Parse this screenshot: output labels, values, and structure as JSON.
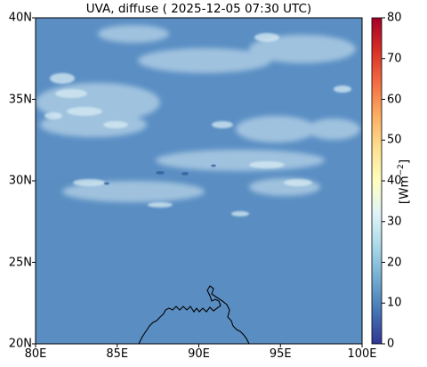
{
  "title": "UVA, diffuse ( 2025-12-05 07:30 UTC)",
  "map": {
    "lon_range": [
      80,
      100
    ],
    "lat_range": [
      20,
      40
    ],
    "x_ticks": [
      "80E",
      "85E",
      "90E",
      "95E",
      "100E"
    ],
    "y_ticks": [
      "20N",
      "25N",
      "30N",
      "35N",
      "40N"
    ],
    "background_value": 15,
    "background_color": "#5b8fc4",
    "cloud_color": "#d8ecf4",
    "coastline_color": "#000000"
  },
  "colorbar": {
    "min": 0,
    "max": 80,
    "ticks": [
      "0",
      "10",
      "20",
      "30",
      "40",
      "50",
      "60",
      "70",
      "80"
    ],
    "label_unit": "[Wm",
    "label_exp": "−2",
    "label_close": "]",
    "colormap": "RdYlBu_r",
    "colors": [
      "#313695",
      "#4575b4",
      "#74add1",
      "#abd9e9",
      "#e0f3f8",
      "#ffffbf",
      "#fee090",
      "#fdae61",
      "#f46d43",
      "#d73027",
      "#a50026"
    ]
  }
}
